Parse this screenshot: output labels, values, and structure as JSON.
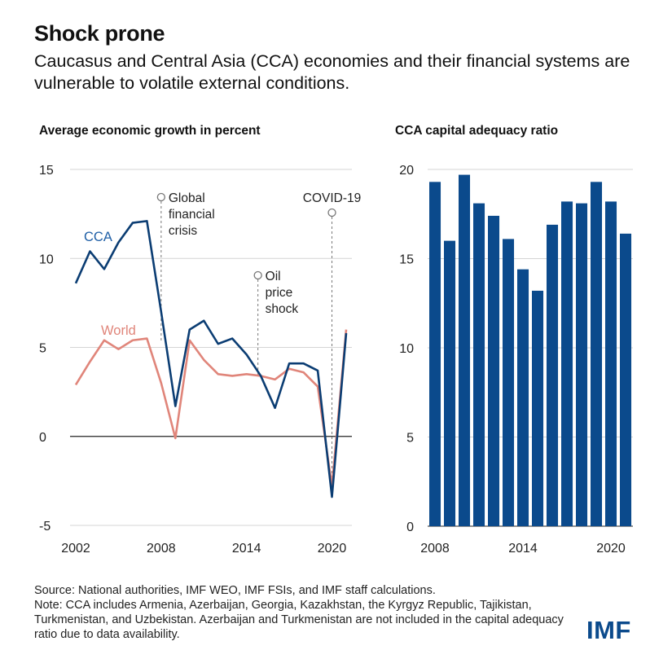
{
  "header": {
    "title": "Shock prone",
    "subtitle": "Caucasus and Central Asia (CCA) economies and their financial systems are vulnerable to volatile external conditions."
  },
  "chart_data": [
    {
      "type": "line",
      "title": "Average economic growth in percent",
      "xlabel": "",
      "ylabel": "",
      "ylim": [
        -5,
        15
      ],
      "xlim": [
        2002,
        2021
      ],
      "yticks": [
        -5,
        0,
        5,
        10,
        15
      ],
      "xticks": [
        2002,
        2008,
        2014,
        2020
      ],
      "grid": true,
      "x": [
        2002,
        2003,
        2004,
        2005,
        2006,
        2007,
        2008,
        2009,
        2010,
        2011,
        2012,
        2013,
        2014,
        2015,
        2016,
        2017,
        2018,
        2019,
        2020,
        2021
      ],
      "series": [
        {
          "name": "CCA",
          "color": "#0b3d73",
          "label_color": "#1f5fa6",
          "values": [
            8.6,
            10.4,
            9.4,
            10.9,
            12.0,
            12.1,
            7.0,
            1.7,
            6.0,
            6.5,
            5.2,
            5.5,
            4.6,
            3.4,
            1.6,
            4.1,
            4.1,
            3.7,
            -3.4,
            5.8
          ]
        },
        {
          "name": "World",
          "color": "#e0857a",
          "label_color": "#e0857a",
          "values": [
            2.9,
            4.2,
            5.4,
            4.9,
            5.4,
            5.5,
            3.0,
            -0.1,
            5.4,
            4.3,
            3.5,
            3.4,
            3.5,
            3.4,
            3.2,
            3.8,
            3.6,
            2.8,
            -2.8,
            6.0
          ]
        }
      ],
      "annotations": [
        {
          "label": "Global financial crisis",
          "x": 2008
        },
        {
          "label": "Oil price shock",
          "x": 2014.8
        },
        {
          "label": "COVID-19",
          "x": 2020
        }
      ]
    },
    {
      "type": "bar",
      "title": "CCA capital adequacy ratio",
      "ylim": [
        0,
        20
      ],
      "yticks": [
        0,
        5,
        10,
        15,
        20
      ],
      "xticks": [
        2008,
        2014,
        2020
      ],
      "color": "#0b4a8c",
      "grid": true,
      "categories": [
        2008,
        2009,
        2010,
        2011,
        2012,
        2013,
        2014,
        2015,
        2016,
        2017,
        2018,
        2019,
        2020,
        2021
      ],
      "values": [
        19.3,
        16.0,
        19.7,
        18.1,
        17.4,
        16.1,
        14.4,
        13.2,
        16.9,
        18.2,
        18.1,
        19.3,
        18.2,
        16.4
      ]
    }
  ],
  "footer": {
    "source": "Source: National authorities, IMF WEO, IMF FSIs, and IMF staff calculations.",
    "note": "Note: CCA includes Armenia, Azerbaijan, Georgia, Kazakhstan, the Kyrgyz Republic, Tajikistan, Turkmenistan, and Uzbekistan. Azerbaijan and Turkmenistan are not included in the capital adequacy ratio due to data availability.",
    "logo": "IMF"
  }
}
